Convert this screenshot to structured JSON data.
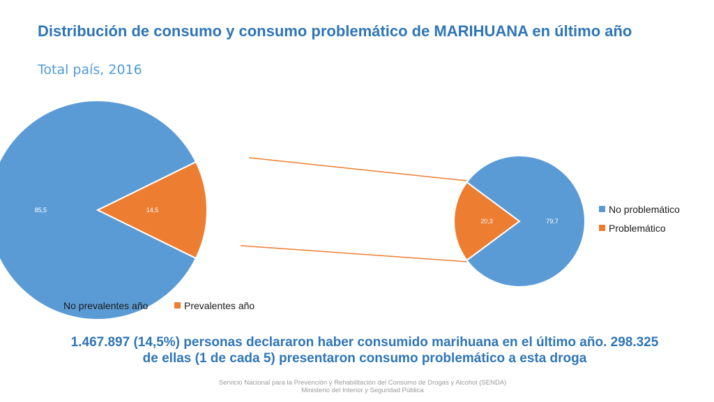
{
  "title": "Distribución de consumo y consumo problemático de MARIHUANA en último año",
  "subtitle": "Total país, 2016",
  "colors": {
    "blue": "#5b9bd5",
    "orange": "#ed7d31",
    "text_blue": "#2e75b6"
  },
  "chart_data": [
    {
      "type": "pie",
      "categories": [
        "No prevalentes año",
        "Prevalentes año"
      ],
      "values": [
        85.5,
        14.5
      ],
      "value_labels": [
        "85,5",
        "14,5"
      ],
      "colors": [
        "#5b9bd5",
        "#ed7d31"
      ],
      "legend_position": "bottom"
    },
    {
      "type": "pie",
      "categories": [
        "No problemático",
        "Problemático"
      ],
      "values": [
        79.7,
        20.3
      ],
      "value_labels": [
        "79,7",
        "20,3"
      ],
      "colors": [
        "#5b9bd5",
        "#ed7d31"
      ],
      "legend_position": "right"
    }
  ],
  "summary": "1.467.897 (14,5%) personas declararon haber consumido marihuana en el último año. 298.325 de ellas (1 de cada 5) presentaron consumo problemático a esta droga",
  "footer": {
    "line1": "Servicio Nacional para la Prevención y Rehabilitación del Consumo de Drogas y Alcohol (SENDA)",
    "line2": "Ministerio del Interior y Seguridad Pública"
  }
}
